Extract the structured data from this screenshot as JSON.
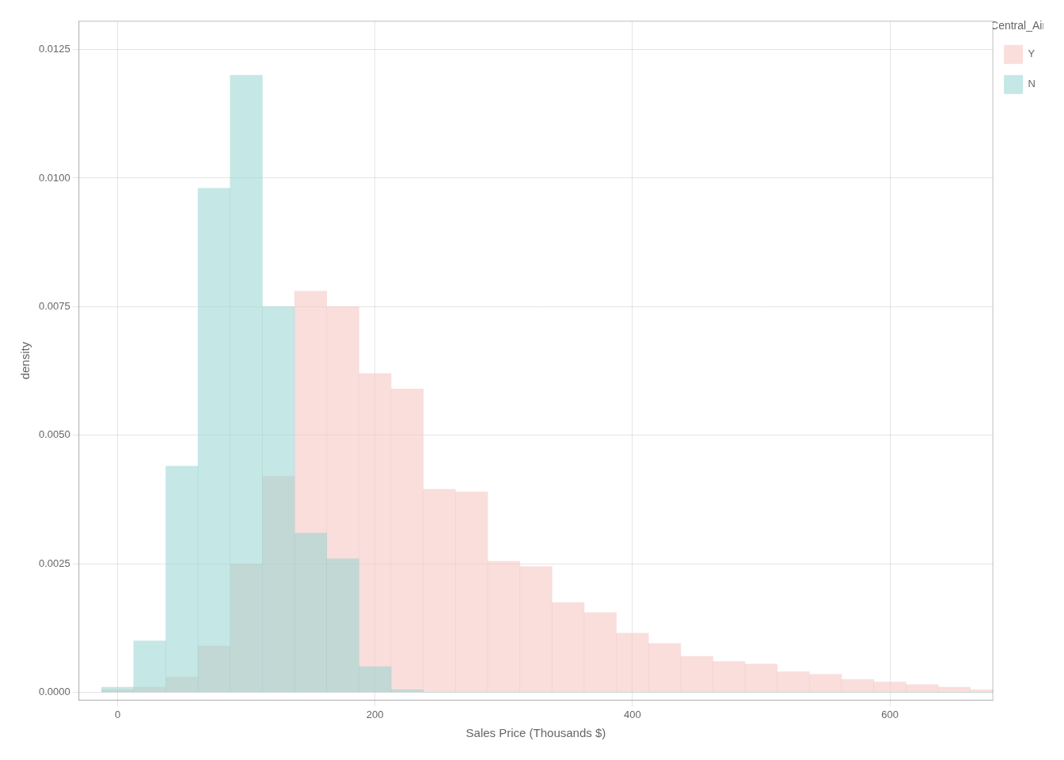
{
  "chart_data": {
    "type": "histogram",
    "xlabel": "Sales Price (Thousands $)",
    "ylabel": "density",
    "legend_title": "Central_Air",
    "bins": [
      -12.5,
      12.5,
      37.5,
      62.5,
      87.5,
      112.5,
      137.5,
      162.5,
      187.5,
      212.5,
      237.5,
      262.5,
      287.5,
      312.5,
      337.5,
      362.5,
      387.5,
      412.5,
      437.5,
      462.5,
      487.5,
      512.5,
      537.5,
      562.5,
      587.5,
      612.5,
      637.5,
      662.5,
      687.5
    ],
    "series": [
      {
        "name": "Y",
        "color": "#F4C2C0",
        "values": [
          5e-05,
          0.0001,
          0.0003,
          0.0009,
          0.0025,
          0.0042,
          0.0078,
          0.0075,
          0.0062,
          0.0059,
          0.00395,
          0.0039,
          0.00255,
          0.00245,
          0.00175,
          0.00155,
          0.00115,
          0.00095,
          0.0007,
          0.0006,
          0.00055,
          0.0004,
          0.00035,
          0.00025,
          0.0002,
          0.00015,
          0.0001,
          5e-05
        ]
      },
      {
        "name": "N",
        "color": "#96D4CF",
        "values": [
          0.0001,
          0.001,
          0.0044,
          0.0098,
          0.012,
          0.0075,
          0.0031,
          0.0026,
          0.0005,
          5e-05,
          0.0,
          0.0,
          0.0,
          0.0,
          0.0,
          0.0,
          0.0,
          0.0,
          0.0,
          0.0,
          0.0,
          0.0,
          0.0,
          0.0,
          0.0,
          0.0,
          0.0,
          0.0
        ]
      }
    ],
    "xlim": [
      -30,
      680
    ],
    "ylim": [
      -0.00015,
      0.01305
    ],
    "xticks": [
      0,
      200,
      400,
      600
    ],
    "yticks": [
      {
        "value": 0.0,
        "label": "0.0000"
      },
      {
        "value": 0.0025,
        "label": "0.0025"
      },
      {
        "value": 0.005,
        "label": "0.0050"
      },
      {
        "value": 0.0075,
        "label": "0.0075"
      },
      {
        "value": 0.01,
        "label": "0.0100"
      },
      {
        "value": 0.0125,
        "label": "0.0125"
      }
    ],
    "grid": true,
    "legend": "right"
  }
}
